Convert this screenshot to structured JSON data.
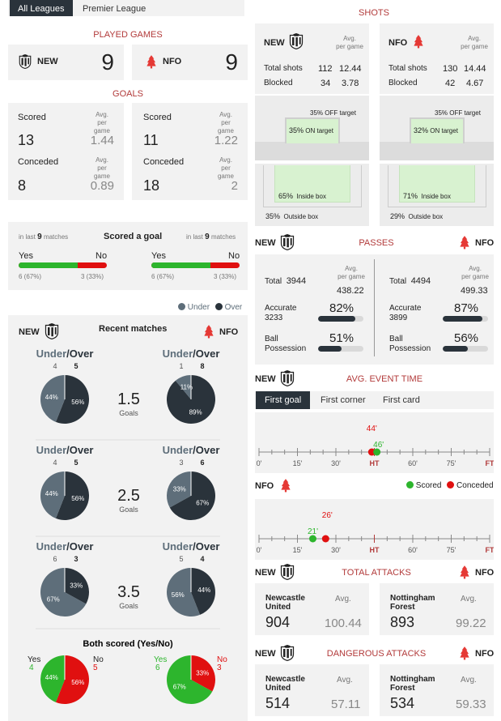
{
  "tabs": [
    "All Leagues",
    "Premier League"
  ],
  "played": {
    "title": "PLAYED GAMES",
    "home_team": "NEW",
    "home_games": "9",
    "away_team": "NFO",
    "away_games": "9"
  },
  "goals": {
    "title": "GOALS",
    "avg_label1": "Avg.",
    "avg_label2": "per game",
    "home": {
      "scored_label": "Scored",
      "scored": "13",
      "scored_avg": "1.44",
      "conceded_label": "Conceded",
      "conceded": "8",
      "conceded_avg": "0.89"
    },
    "away": {
      "scored_label": "Scored",
      "scored": "11",
      "scored_avg": "1.22",
      "conceded_label": "Conceded",
      "conceded": "18",
      "conceded_avg": "2"
    }
  },
  "scored_a_goal": {
    "title": "Scored a goal",
    "in_last_prefix": "in last",
    "in_last_num": "9",
    "in_last_suffix": "matches",
    "yes": "Yes",
    "no": "No",
    "home": {
      "yes_text": "6 (67%)",
      "no_text": "3 (33%)",
      "yes_pct": 0.67
    },
    "away": {
      "yes_text": "6 (67%)",
      "no_text": "3 (33%)",
      "yes_pct": 0.67
    }
  },
  "legend": {
    "under": "Under",
    "over": "Over"
  },
  "recent": {
    "title": "Recent matches",
    "home_team": "NEW",
    "away_team": "NFO",
    "under_word": "Under",
    "over_word": "/Over",
    "goals_word": "Goals",
    "rows": [
      {
        "line": "1.5",
        "home": {
          "under": "4",
          "over": "5",
          "under_pct": "44%",
          "over_pct": "56%",
          "u": 44
        },
        "away": {
          "under": "1",
          "over": "8",
          "under_pct": "11%",
          "over_pct": "89%",
          "u": 11
        }
      },
      {
        "line": "2.5",
        "home": {
          "under": "4",
          "over": "5",
          "under_pct": "44%",
          "over_pct": "56%",
          "u": 44
        },
        "away": {
          "under": "3",
          "over": "6",
          "under_pct": "33%",
          "over_pct": "67%",
          "u": 33
        }
      },
      {
        "line": "3.5",
        "home": {
          "under": "6",
          "over": "3",
          "under_pct": "67%",
          "over_pct": "33%",
          "u": 67
        },
        "away": {
          "under": "5",
          "over": "4",
          "under_pct": "56%",
          "over_pct": "44%",
          "u": 56
        }
      }
    ]
  },
  "both_scored": {
    "title": "Both scored (Yes/No)",
    "home": {
      "yes": "Yes",
      "yes_n": "4",
      "no": "No",
      "no_n": "5",
      "yes_pct": "44%",
      "no_pct": "56%",
      "y": 44
    },
    "away": {
      "yes": "Yes",
      "yes_n": "6",
      "no": "No",
      "no_n": "3",
      "yes_pct": "67%",
      "no_pct": "33%",
      "y": 67
    }
  },
  "shots": {
    "title": "SHOTS",
    "avg_label1": "Avg.",
    "avg_label2": "per game",
    "home": {
      "team": "NEW",
      "total_label": "Total shots",
      "total": "112",
      "total_avg": "12.44",
      "blocked_label": "Blocked",
      "blocked": "34",
      "blocked_avg": "3.78",
      "off_pct": "35%",
      "off_label": "OFF target",
      "on_pct": "35%",
      "on_label": "ON target",
      "inside_pct": "65%",
      "inside_label": "Inside box",
      "outside_pct": "35%",
      "outside_label": "Outside box"
    },
    "away": {
      "team": "NFO",
      "total_label": "Total shots",
      "total": "130",
      "total_avg": "14.44",
      "blocked_label": "Blocked",
      "blocked": "42",
      "blocked_avg": "4.67",
      "off_pct": "35%",
      "off_label": "OFF target",
      "on_pct": "32%",
      "on_label": "ON target",
      "inside_pct": "71%",
      "inside_label": "Inside box",
      "outside_pct": "29%",
      "outside_label": "Outside box"
    }
  },
  "passes": {
    "title": "PASSES",
    "home_team": "NEW",
    "away_team": "NFO",
    "avg_label1": "Avg.",
    "avg_label2": "per game",
    "home": {
      "total_label": "Total",
      "total": "3944",
      "total_avg": "438.22",
      "accurate_label": "Accurate",
      "accurate": "3233",
      "accurate_pct": "82%",
      "acc": 82,
      "poss_label1": "Ball",
      "poss_label2": "Possession",
      "poss_pct": "51%",
      "poss": 51
    },
    "away": {
      "total_label": "Total",
      "total": "4494",
      "total_avg": "499.33",
      "accurate_label": "Accurate",
      "accurate": "3899",
      "accurate_pct": "87%",
      "acc": 87,
      "poss_label1": "Ball",
      "poss_label2": "Possession",
      "poss_pct": "56%",
      "poss": 56
    }
  },
  "event_time": {
    "title": "AVG. EVENT TIME",
    "home_team": "NEW",
    "away_team": "NFO",
    "tabs": [
      "First goal",
      "First corner",
      "First card"
    ],
    "ticks": [
      "0'",
      "15'",
      "30'",
      "HT",
      "60'",
      "75'",
      "FT"
    ],
    "legend_scored": "Scored",
    "legend_conceded": "Conceded",
    "home": {
      "conceded": "44'",
      "scored": "46'",
      "conceded_min": 44,
      "scored_min": 46
    },
    "away": {
      "conceded": "26'",
      "scored": "21'",
      "conceded_min": 26,
      "scored_min": 21
    },
    "scored_color": "#2db52d",
    "conceded_color": "#e01010"
  },
  "total_attacks": {
    "title": "TOTAL ATTACKS",
    "home_team": "NEW",
    "away_team": "NFO",
    "avg": "Avg.",
    "home": {
      "name1": "Newcastle",
      "name2": "United",
      "value": "904",
      "avg_value": "100.44"
    },
    "away": {
      "name1": "Nottingham",
      "name2": "Forest",
      "value": "893",
      "avg_value": "99.22"
    }
  },
  "dangerous_attacks": {
    "title": "DANGEROUS ATTACKS",
    "home_team": "NEW",
    "away_team": "NFO",
    "avg": "Avg.",
    "home": {
      "name1": "Newcastle",
      "name2": "United",
      "value": "514",
      "avg_value": "57.11"
    },
    "away": {
      "name1": "Nottingham",
      "name2": "Forest",
      "value": "534",
      "avg_value": "59.33"
    }
  },
  "colors": {
    "accent": "#b23a3a",
    "dark": "#2a333b",
    "slate": "#5e6e7a",
    "green": "#2db52d",
    "red": "#e01010"
  },
  "icons": {
    "home_crest": "magpie-crest-icon",
    "away_crest": "tree-crest-icon"
  }
}
